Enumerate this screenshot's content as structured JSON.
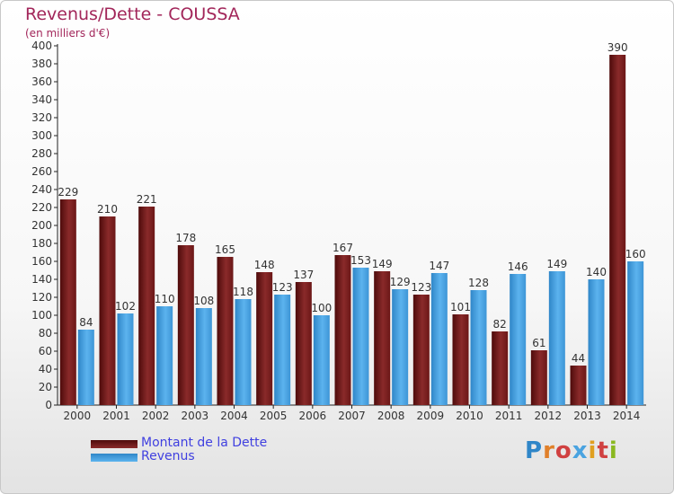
{
  "title": "Revenus/Dette - COUSSA",
  "subtitle": "(en milliers d'€)",
  "logo": "Proxiti",
  "colors": {
    "dette": "#7a1c1c",
    "revenus": "#4aa3e0",
    "title": "#a2265a",
    "legend_text": "#4040e0"
  },
  "chart_data": {
    "type": "bar",
    "categories": [
      "2000",
      "2001",
      "2002",
      "2003",
      "2004",
      "2005",
      "2006",
      "2007",
      "2008",
      "2009",
      "2010",
      "2011",
      "2012",
      "2013",
      "2014"
    ],
    "series": [
      {
        "name": "Montant de la Dette",
        "values": [
          229,
          210,
          221,
          178,
          165,
          148,
          137,
          167,
          149,
          123,
          101,
          82,
          61,
          44,
          390
        ]
      },
      {
        "name": "Revenus",
        "values": [
          84,
          102,
          110,
          108,
          118,
          123,
          100,
          153,
          129,
          147,
          128,
          146,
          149,
          140,
          160
        ]
      }
    ],
    "ylim": [
      0,
      400
    ],
    "ytick_step": 20,
    "grid": false,
    "legend": "bottom-left"
  }
}
